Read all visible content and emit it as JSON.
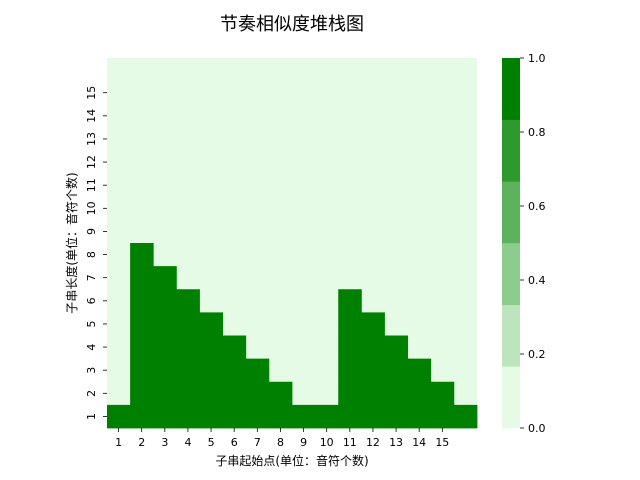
{
  "chart_data": {
    "type": "heatmap",
    "title": "节奏相似度堆栈图",
    "xlabel": "子串起始点(单位：音符个数)",
    "ylabel": "子串长度(单位：音符个数)",
    "x_ticks": [
      "1",
      "2",
      "3",
      "4",
      "5",
      "6",
      "7",
      "8",
      "9",
      "10",
      "11",
      "12",
      "13",
      "14",
      "15"
    ],
    "y_ticks": [
      "1",
      "2",
      "3",
      "4",
      "5",
      "6",
      "7",
      "8",
      "9",
      "10",
      "11",
      "12",
      "13",
      "14",
      "15"
    ],
    "n_cols": 16,
    "n_rows": 16,
    "column_stack_heights": [
      1,
      8,
      7,
      6,
      5,
      4,
      3,
      2,
      1,
      1,
      6,
      5,
      4,
      3,
      2,
      1
    ],
    "cell_value_filled": 1.0,
    "cell_value_empty": 0.0,
    "colorbar": {
      "range": [
        0.0,
        1.0
      ],
      "ticks": [
        "0.0",
        "0.2",
        "0.4",
        "0.6",
        "0.8",
        "1.0"
      ],
      "colors": [
        "#e5fbe5",
        "#bde5bd",
        "#8ccc8c",
        "#5cb35c",
        "#2e9a2e",
        "#008000"
      ]
    }
  }
}
